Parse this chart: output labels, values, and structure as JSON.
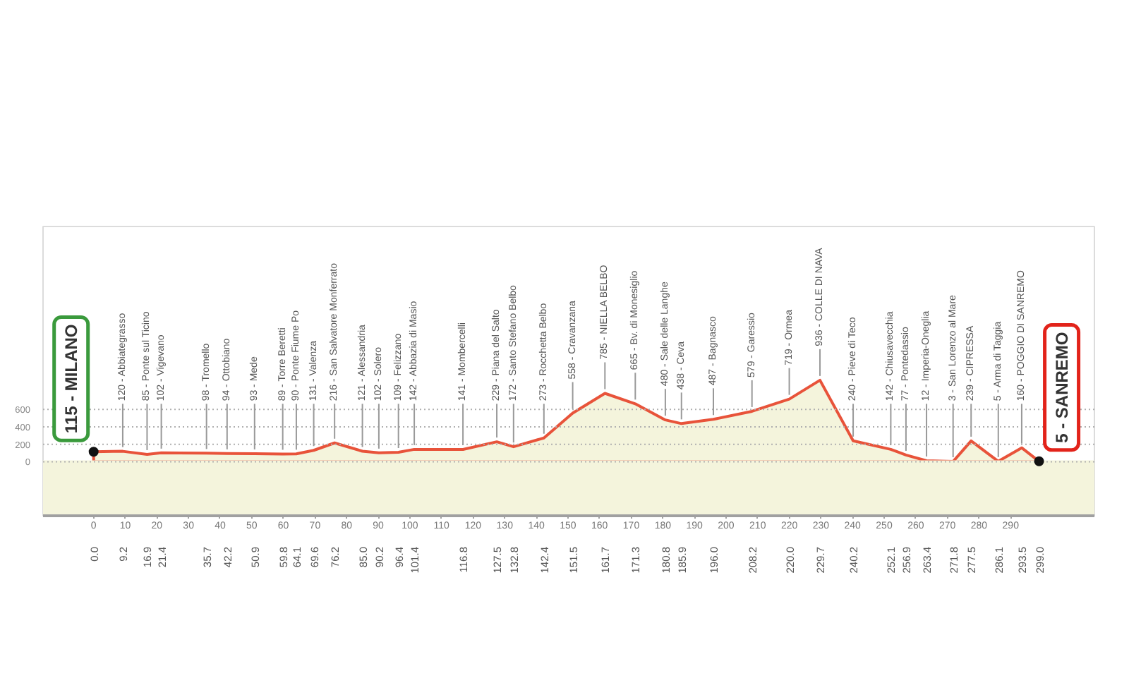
{
  "chart_data": {
    "type": "area",
    "x": [
      0,
      9.2,
      16.9,
      21.4,
      35.7,
      42.2,
      50.9,
      59.8,
      64.1,
      69.6,
      76.2,
      85.0,
      90.2,
      96.4,
      101.4,
      116.8,
      127.5,
      132.8,
      142.4,
      151.5,
      161.7,
      171.3,
      180.8,
      185.9,
      196.0,
      208.2,
      220.0,
      229.7,
      240.2,
      252.1,
      256.9,
      263.4,
      271.8,
      277.5,
      286.1,
      293.5,
      299.0
    ],
    "series": [
      {
        "color": "#e8533a",
        "values": [
          115,
          120,
          85,
          102,
          98,
          94,
          93,
          89,
          90,
          131,
          216,
          121,
          102,
          109,
          142,
          141,
          229,
          172,
          273,
          558,
          785,
          665,
          480,
          438,
          487,
          579,
          719,
          936,
          240,
          142,
          77,
          12,
          3,
          239,
          5,
          160,
          5
        ]
      }
    ],
    "xlim": [
      -16,
      316.5
    ],
    "xticks": [
      {
        "value": 0,
        "label": "0.0"
      },
      9.2,
      16.9,
      21.4,
      35.7,
      42.2,
      50.9,
      59.8,
      64.1,
      69.6,
      76.2,
      {
        "value": 85,
        "label": "85.0"
      },
      90.2,
      96.4,
      101.4,
      116.8,
      127.5,
      132.8,
      142.4,
      151.5,
      161.7,
      171.3,
      180.8,
      185.9,
      {
        "value": 196,
        "label": "196.0"
      },
      208.2,
      {
        "value": 220,
        "label": "220.0"
      },
      229.7,
      240.2,
      252.1,
      256.9,
      263.4,
      271.8,
      277.5,
      286.1,
      293.5,
      {
        "value": 299,
        "label": "299.0"
      }
    ],
    "x2lim": [
      -16,
      316.5
    ],
    "x2ticks": [
      0,
      10,
      20,
      30,
      40,
      50,
      60,
      70,
      80,
      90,
      100,
      110,
      120,
      130,
      140,
      150,
      160,
      170,
      180,
      190,
      200,
      210,
      220,
      230,
      240,
      250,
      260,
      270,
      280,
      290
    ],
    "ylim": [
      -620,
      2700
    ],
    "yticks": [
      0,
      200,
      400,
      600
    ],
    "grid": "y",
    "bands": [
      {
        "axis": "y",
        "from": -620,
        "to": 0,
        "color": "#f4f4dc"
      }
    ],
    "annotations": [
      {
        "text": "115 - MILANO",
        "x": 0,
        "y": 115
      },
      {
        "text": "120 - Abbiategrasso",
        "x": 9.2,
        "y": 120
      },
      {
        "text": "85 - Ponte sul Ticino",
        "x": 16.9,
        "y": 85
      },
      {
        "text": "102 - Vigevano",
        "x": 21.4,
        "y": 102
      },
      {
        "text": "98 - Tromello",
        "x": 35.7,
        "y": 98
      },
      {
        "text": "94 - Ottobiano",
        "x": 42.2,
        "y": 94
      },
      {
        "text": "93 - Mede",
        "x": 50.9,
        "y": 93
      },
      {
        "text": "89 - Torre Beretti",
        "x": 59.8,
        "y": 89
      },
      {
        "text": "90 - Ponte Fiume Po",
        "x": 64.1,
        "y": 90
      },
      {
        "text": "131 - Valenza",
        "x": 69.6,
        "y": 131
      },
      {
        "text": "216 - San Salvatore Monferrato",
        "x": 76.2,
        "y": 216
      },
      {
        "text": "121 - Alessandria",
        "x": 85.0,
        "y": 121
      },
      {
        "text": "102 - Solero",
        "x": 90.2,
        "y": 102
      },
      {
        "text": "109 - Felizzano",
        "x": 96.4,
        "y": 109
      },
      {
        "text": "142 - Abbazia di Masio",
        "x": 101.4,
        "y": 142
      },
      {
        "text": "141 - Mombercelli",
        "x": 116.8,
        "y": 141
      },
      {
        "text": "229 - Piana del Salto",
        "x": 127.5,
        "y": 229
      },
      {
        "text": "172 - Santo Stefano Belbo",
        "x": 132.8,
        "y": 172
      },
      {
        "text": "273 - Rocchetta Belbo",
        "x": 142.4,
        "y": 273
      },
      {
        "text": "558 - Cravanzana",
        "x": 151.5,
        "y": 558
      },
      {
        "text": "785 - NIELLA BELBO",
        "x": 161.7,
        "y": 785
      },
      {
        "text": "665 - Bv. di Monesiglio",
        "x": 171.3,
        "y": 665
      },
      {
        "text": "480 - Sale delle Langhe",
        "x": 180.8,
        "y": 480
      },
      {
        "text": "438 - Ceva",
        "x": 185.9,
        "y": 438
      },
      {
        "text": "487 - Bagnasco",
        "x": 196.0,
        "y": 487
      },
      {
        "text": "579 - Garessio",
        "x": 208.2,
        "y": 579
      },
      {
        "text": "719 - Ormea",
        "x": 220.0,
        "y": 719
      },
      {
        "text": "936 - COLLE DI NAVA",
        "x": 229.7,
        "y": 936
      },
      {
        "text": "240 - Pieve di Teco",
        "x": 240.2,
        "y": 240
      },
      {
        "text": "142 - Chiusavecchia",
        "x": 252.1,
        "y": 142
      },
      {
        "text": "77 - Pontedassio",
        "x": 256.9,
        "y": 77
      },
      {
        "text": "12 - Imperia-Oneglia",
        "x": 263.4,
        "y": 12
      },
      {
        "text": "3 - San Lorenzo al Mare",
        "x": 271.8,
        "y": 3
      },
      {
        "text": "239 - CIPRESSA",
        "x": 277.5,
        "y": 239
      },
      {
        "text": "5 - Arma di Taggia",
        "x": 286.1,
        "y": 5
      },
      {
        "text": "160 - POGGIO DI SANREMO",
        "x": 293.5,
        "y": 160
      },
      {
        "text": "5 - SANREMO",
        "x": 299.0,
        "y": 5
      }
    ]
  }
}
